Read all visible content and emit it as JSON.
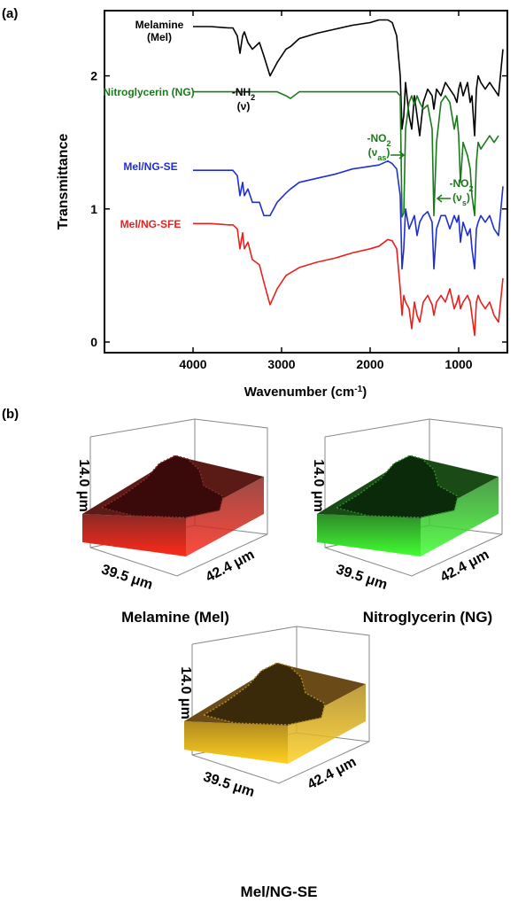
{
  "chart_data": {
    "type": "line",
    "panel_label": "(a)",
    "xlabel": [
      "Wavenumber (cm",
      "-1",
      ")"
    ],
    "ylabel": "Transmittance",
    "x": [
      4000,
      3800,
      3600,
      3550,
      3500,
      3470,
      3440,
      3420,
      3380,
      3330,
      3250,
      3200,
      3130,
      3050,
      2950,
      2900,
      2800,
      2600,
      2400,
      2200,
      2000,
      1900,
      1800,
      1750,
      1700,
      1660,
      1640,
      1620,
      1600,
      1560,
      1530,
      1500,
      1470,
      1440,
      1400,
      1350,
      1300,
      1280,
      1250,
      1200,
      1150,
      1100,
      1050,
      1020,
      1000,
      980,
      950,
      900,
      870,
      850,
      820,
      800,
      780,
      750,
      700,
      650,
      600,
      550,
      500
    ],
    "series": [
      {
        "name": "Melamine (Mel)",
        "color": "#000000",
        "values": [
          2.37,
          2.37,
          2.36,
          2.36,
          2.3,
          2.17,
          2.3,
          2.33,
          2.25,
          2.2,
          2.25,
          2.15,
          2.0,
          2.1,
          2.2,
          2.22,
          2.28,
          2.32,
          2.35,
          2.38,
          2.4,
          2.42,
          2.42,
          2.4,
          2.3,
          2.0,
          1.6,
          1.7,
          1.95,
          1.7,
          1.6,
          1.85,
          1.7,
          1.55,
          1.8,
          1.9,
          1.85,
          1.75,
          1.9,
          1.85,
          1.95,
          1.9,
          1.85,
          1.8,
          1.9,
          1.95,
          1.85,
          1.95,
          1.8,
          1.85,
          1.55,
          1.9,
          2.0,
          1.95,
          1.9,
          1.95,
          1.9,
          1.85,
          2.2
        ]
      },
      {
        "name": "Nitroglycerin (NG)",
        "color": "#1a7a1a",
        "values": [
          1.88,
          1.88,
          1.88,
          1.88,
          1.88,
          1.88,
          1.88,
          1.88,
          1.88,
          1.88,
          1.88,
          1.88,
          1.88,
          1.88,
          1.85,
          1.83,
          1.88,
          1.88,
          1.88,
          1.88,
          1.88,
          1.88,
          1.88,
          1.88,
          1.88,
          1.85,
          0.94,
          0.97,
          1.6,
          1.8,
          1.85,
          1.78,
          1.85,
          1.8,
          1.75,
          1.78,
          1.6,
          0.95,
          1.5,
          1.8,
          1.85,
          1.8,
          1.6,
          1.7,
          1.55,
          1.2,
          1.5,
          1.4,
          1.3,
          1.1,
          0.95,
          1.35,
          1.5,
          1.45,
          1.5,
          1.55,
          1.5,
          1.55,
          null
        ]
      },
      {
        "name": "Mel/NG-SE",
        "color": "#1f2fd0",
        "values": [
          1.29,
          1.29,
          1.29,
          1.29,
          1.25,
          1.1,
          1.2,
          1.1,
          1.15,
          1.05,
          1.05,
          0.95,
          0.95,
          1.05,
          1.12,
          1.15,
          1.2,
          1.23,
          1.26,
          1.3,
          1.32,
          1.33,
          1.36,
          1.34,
          1.3,
          1.1,
          0.55,
          0.7,
          1.0,
          0.85,
          0.9,
          0.95,
          0.8,
          0.9,
          0.95,
          0.98,
          0.9,
          0.55,
          0.85,
          0.95,
          0.95,
          0.85,
          0.95,
          0.9,
          0.95,
          0.75,
          0.9,
          0.8,
          0.85,
          0.7,
          0.55,
          0.85,
          0.9,
          0.95,
          0.9,
          0.95,
          0.85,
          0.8,
          1.17
        ]
      },
      {
        "name": "Mel/NG-SFE",
        "color": "#e8201e",
        "values": [
          0.89,
          0.89,
          0.88,
          0.88,
          0.85,
          0.7,
          0.82,
          0.7,
          0.75,
          0.62,
          0.58,
          0.45,
          0.28,
          0.4,
          0.5,
          0.52,
          0.56,
          0.6,
          0.63,
          0.67,
          0.7,
          0.72,
          0.77,
          0.76,
          0.7,
          0.4,
          0.2,
          0.35,
          0.3,
          0.25,
          0.1,
          0.3,
          0.2,
          0.15,
          0.3,
          0.35,
          0.28,
          0.2,
          0.3,
          0.35,
          0.3,
          0.4,
          0.25,
          0.3,
          0.35,
          0.25,
          0.3,
          0.35,
          0.3,
          0.2,
          0.05,
          0.3,
          0.35,
          0.3,
          0.25,
          0.3,
          0.2,
          0.15,
          0.48
        ]
      }
    ],
    "annotations": [
      {
        "lines": [
          [
            "-NH",
            "2"
          ],
          [
            "(ν)"
          ]
        ],
        "color": "#000000"
      },
      {
        "lines": [
          [
            "-NO",
            "2"
          ],
          [
            "(ν",
            "as",
            ")"
          ]
        ],
        "color": "#1a7a1a"
      },
      {
        "lines": [
          [
            "-NO",
            "2"
          ],
          [
            "(ν",
            "s",
            ")"
          ]
        ],
        "color": "#1a7a1a"
      }
    ],
    "xlim": [
      5000,
      450
    ],
    "ylim": [
      -0.08,
      2.49
    ],
    "xticks": [
      4000,
      3000,
      2000,
      1000
    ],
    "yticks": [
      0,
      1,
      2
    ]
  },
  "panel_b": {
    "label": "(b)",
    "renderings": [
      {
        "z_label": "14.0 μm",
        "x_label": "39.5 μm",
        "y_label": "42.4 μm",
        "caption": "Melamine (Mel)"
      },
      {
        "z_label": "14.0 μm",
        "x_label": "39.5 μm",
        "y_label": "42.4 μm",
        "caption": "Nitroglycerin (NG)"
      },
      {
        "z_label": "14.0 μm",
        "x_label": "39.5 μm",
        "y_label": "42.4 μm",
        "caption": "Mel/NG-SE"
      }
    ]
  }
}
